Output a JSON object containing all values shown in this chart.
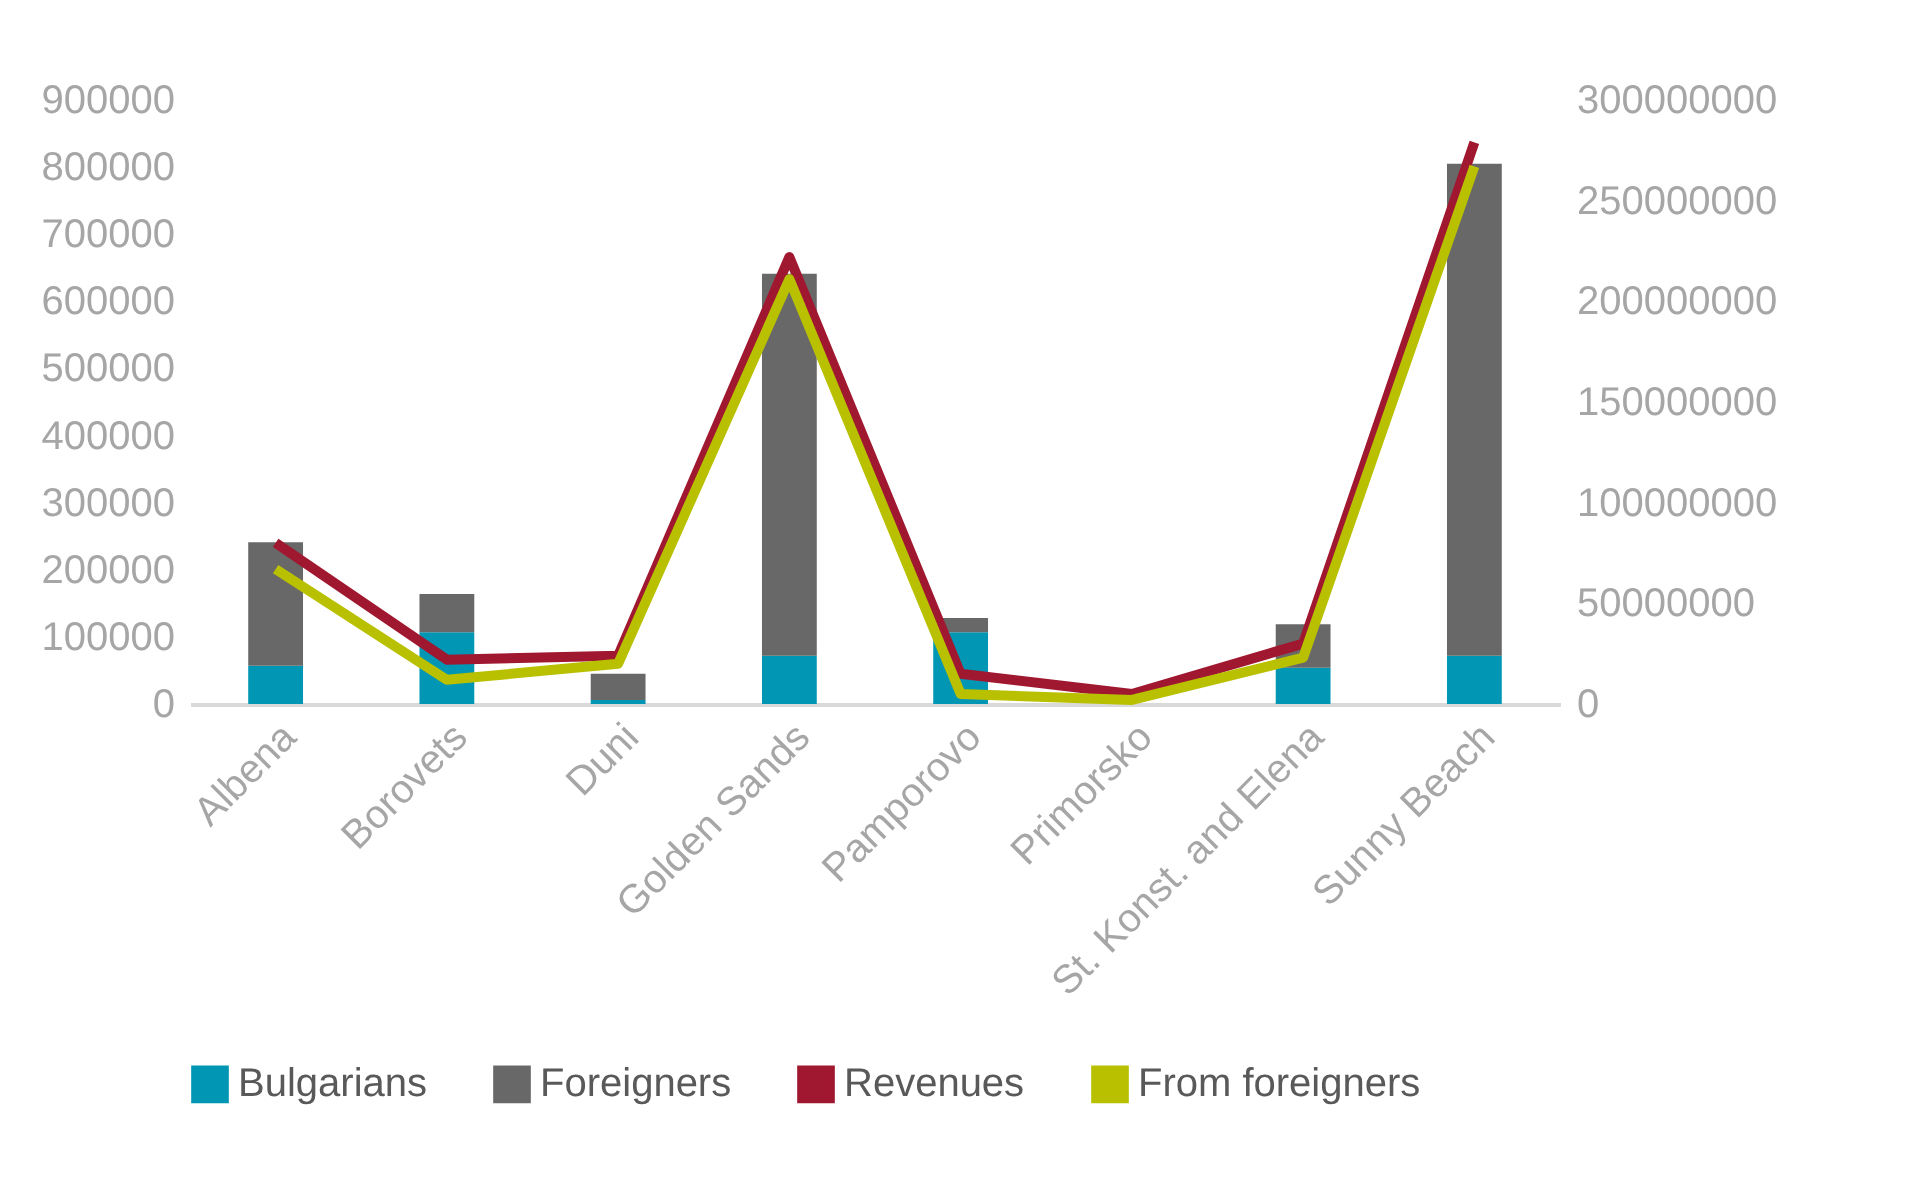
{
  "chart_data": {
    "type": "bar",
    "stacked": true,
    "categories": [
      "Albena",
      "Borovets",
      "Duni",
      "Golden Sands",
      "Pamporovo",
      "Primorsko",
      "St. Konst. and Elena",
      "Sunny Beach"
    ],
    "series": [
      {
        "name": "Bulgarians",
        "color": "#0096b4",
        "values": [
          57000,
          107000,
          6000,
          72000,
          107000,
          null,
          54000,
          72000
        ]
      },
      {
        "name": "Foreigners",
        "color": "#686868",
        "values": [
          184000,
          57000,
          39000,
          569000,
          21000,
          null,
          65000,
          733000
        ]
      },
      {
        "name": "Revenues",
        "type": "line",
        "axis": "y2",
        "color": "#a01830",
        "values": [
          80000000,
          22000000,
          24000000,
          222000000,
          15000000,
          5000000,
          30000000,
          279000000
        ]
      },
      {
        "name": "From foreigners",
        "type": "line",
        "axis": "y2",
        "color": "#b8c000",
        "values": [
          67000000,
          12000000,
          20000000,
          211000000,
          5000000,
          2000000,
          23000000,
          267000000
        ]
      }
    ],
    "ylim": [
      0,
      900000
    ],
    "yticks": [
      0,
      100000,
      200000,
      300000,
      400000,
      500000,
      600000,
      700000,
      800000,
      900000
    ],
    "y2lim": [
      0,
      300000000
    ],
    "y2ticks": [
      0,
      50000000,
      100000000,
      150000000,
      200000000,
      250000000,
      300000000
    ],
    "legend": "bottom",
    "grid": false
  }
}
